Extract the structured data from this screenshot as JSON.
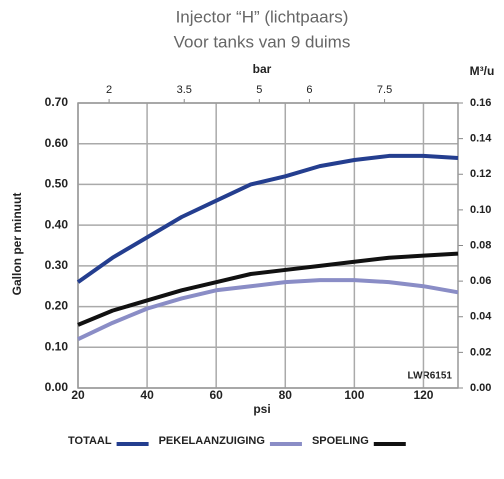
{
  "chart_data": {
    "type": "line",
    "title": "Injector “H” (lichtpaars)",
    "subtitle": "Voor tanks van 9 duims",
    "x_label": "psi",
    "y_label": "Gallon per minuut",
    "x2_label": "bar",
    "y2_label": "M³/u",
    "annotation": "LWR6151",
    "x": [
      20,
      30,
      40,
      50,
      60,
      70,
      80,
      90,
      100,
      110,
      120,
      130
    ],
    "series": [
      {
        "name": "TOTAAL",
        "color": "#243e8f",
        "values": [
          0.26,
          0.32,
          0.37,
          0.42,
          0.46,
          0.5,
          0.52,
          0.545,
          0.56,
          0.57,
          0.57,
          0.565
        ]
      },
      {
        "name": "PEKELAANZUIGING",
        "color": "#8a8dc6",
        "values": [
          0.12,
          0.16,
          0.195,
          0.22,
          0.24,
          0.25,
          0.26,
          0.265,
          0.265,
          0.26,
          0.25,
          0.235
        ]
      },
      {
        "name": "SPOELING",
        "color": "#111111",
        "values": [
          0.155,
          0.19,
          0.215,
          0.24,
          0.26,
          0.28,
          0.29,
          0.3,
          0.31,
          0.32,
          0.325,
          0.33
        ]
      }
    ],
    "xlim": [
      20,
      130
    ],
    "xticks": [
      20,
      40,
      60,
      80,
      100,
      120
    ],
    "ylim": [
      0,
      0.7
    ],
    "yticks": [
      {
        "value": 0,
        "label": "0.00"
      },
      {
        "value": 0.1,
        "label": "0.10"
      },
      {
        "value": 0.2,
        "label": "0.20"
      },
      {
        "value": 0.3,
        "label": "0.30"
      },
      {
        "value": 0.4,
        "label": "0.40"
      },
      {
        "value": 0.5,
        "label": "0.50"
      },
      {
        "value": 0.6,
        "label": "0.60"
      },
      {
        "value": 0.7,
        "label": "0.70"
      }
    ],
    "x2lim": [
      1.379,
      8.966
    ],
    "x2ticks": [
      2,
      3.5,
      5,
      6,
      7.5
    ],
    "y2lim": [
      0,
      0.16
    ],
    "y2ticks": [
      {
        "value": 0,
        "label": "0.00"
      },
      {
        "value": 0.02,
        "label": "0.02"
      },
      {
        "value": 0.04,
        "label": "0.04"
      },
      {
        "value": 0.06,
        "label": "0.06"
      },
      {
        "value": 0.08,
        "label": "0.08"
      },
      {
        "value": 0.1,
        "label": "0.10"
      },
      {
        "value": 0.12,
        "label": "0.12"
      },
      {
        "value": 0.14,
        "label": "0.14"
      },
      {
        "value": 0.16,
        "label": "0.16"
      }
    ],
    "grid": true
  }
}
